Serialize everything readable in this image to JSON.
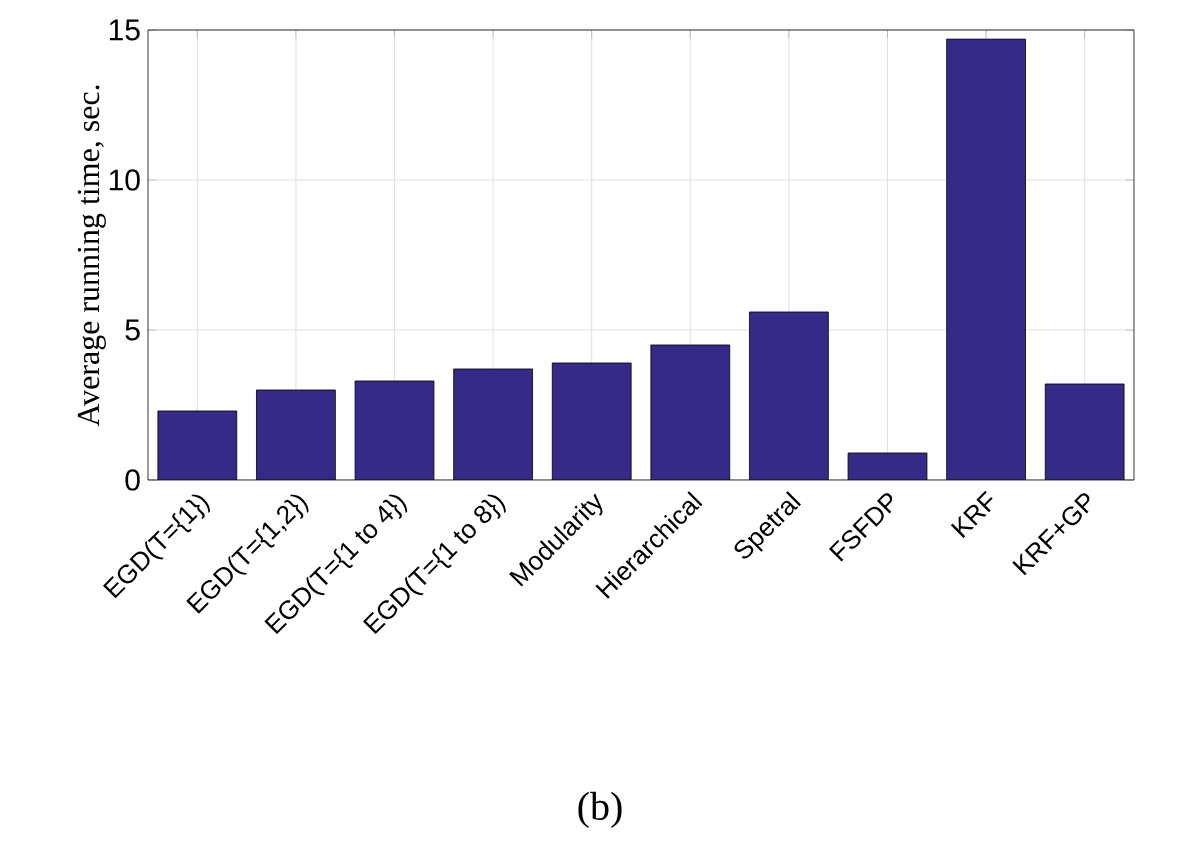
{
  "chart_data": {
    "type": "bar",
    "categories": [
      "EGD(T={1})",
      "EGD(T={1,2})",
      "EGD(T={1 to 4})",
      "EGD(T={1 to 8})",
      "Modularity",
      "Hierarchical",
      "Spetral",
      "FSFDP",
      "KRF",
      "KRF+GP"
    ],
    "values": [
      2.3,
      3.0,
      3.3,
      3.7,
      3.9,
      4.5,
      5.6,
      0.9,
      14.7,
      3.2
    ],
    "color": "#352a87",
    "ylabel": "Average running time, sec.",
    "ylim": [
      0,
      15
    ],
    "yticks": [
      0,
      5,
      10,
      15
    ],
    "grid": true,
    "annotations": [
      "(b)"
    ]
  }
}
